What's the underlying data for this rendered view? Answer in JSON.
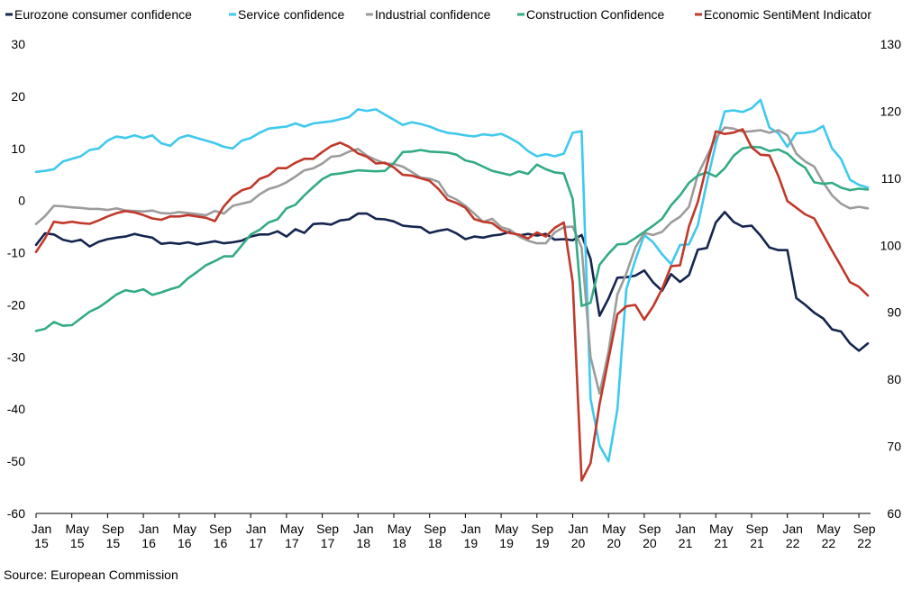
{
  "chart_data": {
    "type": "line",
    "source": "Source: European Commission",
    "x_tick_labels": [
      [
        "Jan",
        "15"
      ],
      [
        "May",
        "15"
      ],
      [
        "Sep",
        "15"
      ],
      [
        "Jan",
        "16"
      ],
      [
        "May",
        "16"
      ],
      [
        "Sep",
        "16"
      ],
      [
        "Jan",
        "17"
      ],
      [
        "May",
        "17"
      ],
      [
        "Sep",
        "17"
      ],
      [
        "Jan",
        "18"
      ],
      [
        "May",
        "18"
      ],
      [
        "Sep",
        "18"
      ],
      [
        "Jan",
        "19"
      ],
      [
        "May",
        "19"
      ],
      [
        "Sep",
        "19"
      ],
      [
        "Jan",
        "20"
      ],
      [
        "May",
        "20"
      ],
      [
        "Sep",
        "20"
      ],
      [
        "Jan",
        "21"
      ],
      [
        "May",
        "21"
      ],
      [
        "Sep",
        "21"
      ],
      [
        "Jan",
        "22"
      ],
      [
        "May",
        "22"
      ],
      [
        "Sep",
        "22"
      ]
    ],
    "x_start": "Jan 15",
    "x_end": "Oct 22",
    "left_axis": {
      "min": -60,
      "max": 30,
      "ticks": [
        30,
        20,
        10,
        0,
        -10,
        -20,
        -30,
        -40,
        -50,
        -60
      ]
    },
    "right_axis": {
      "min": 60,
      "max": 130,
      "ticks": [
        130,
        120,
        110,
        100,
        90,
        80,
        70,
        60
      ]
    },
    "grid": false,
    "legend_position": "top",
    "series": [
      {
        "name": "Eurozone consumer confidence",
        "color": "#14254f",
        "axis": "left",
        "values": [
          -8.5,
          -6.3,
          -6.5,
          -7.5,
          -7.9,
          -7.5,
          -8.8,
          -7.9,
          -7.4,
          -7.1,
          -6.9,
          -6.4,
          -6.8,
          -7.1,
          -8.3,
          -8.1,
          -8.3,
          -8.0,
          -8.4,
          -8.1,
          -7.8,
          -8.2,
          -8.0,
          -7.7,
          -6.9,
          -6.5,
          -6.5,
          -5.9,
          -6.9,
          -5.5,
          -6.2,
          -4.5,
          -4.4,
          -4.6,
          -3.8,
          -3.6,
          -2.5,
          -2.5,
          -3.5,
          -3.6,
          -4.0,
          -4.8,
          -5.0,
          -5.1,
          -6.2,
          -5.8,
          -5.5,
          -6.3,
          -7.4,
          -6.9,
          -7.1,
          -6.7,
          -6.5,
          -6.0,
          -6.7,
          -6.4,
          -6.7,
          -6.4,
          -7.5,
          -7.4,
          -7.6,
          -6.6,
          -11.2,
          -22.1,
          -18.8,
          -14.8,
          -14.7,
          -14.4,
          -13.4,
          -15.7,
          -17.3,
          -14.1,
          -15.6,
          -14.3,
          -9.4,
          -9.1,
          -4.2,
          -2.2,
          -4.1,
          -5.0,
          -4.8,
          -6.7,
          -9.0,
          -9.5,
          -9.5,
          -18.7,
          -20.0,
          -21.5,
          -22.6,
          -24.7,
          -25.1,
          -27.4,
          -28.8,
          -27.4
        ]
      },
      {
        "name": "Service confidence",
        "color": "#3fc9ee",
        "axis": "left",
        "values": [
          5.5,
          5.7,
          6.0,
          7.5,
          8.0,
          8.5,
          9.7,
          10.0,
          11.5,
          12.3,
          12.0,
          12.5,
          12.0,
          12.5,
          11.0,
          10.5,
          12.0,
          12.5,
          12.0,
          11.5,
          11.0,
          10.3,
          10.0,
          11.5,
          12.0,
          13.0,
          13.8,
          14.0,
          14.2,
          14.8,
          14.2,
          14.8,
          15.0,
          15.2,
          15.6,
          16.0,
          17.5,
          17.2,
          17.5,
          16.5,
          15.5,
          14.5,
          15.0,
          14.7,
          14.2,
          13.5,
          13.0,
          12.8,
          12.5,
          12.3,
          12.7,
          12.5,
          12.8,
          12.0,
          11.0,
          9.5,
          8.5,
          8.9,
          8.5,
          9.0,
          13.0,
          13.3,
          -38.0,
          -47.0,
          -50.0,
          -40.0,
          -17.0,
          -11.4,
          -6.6,
          -8.0,
          -10.3,
          -12.2,
          -8.5,
          -8.4,
          -4.7,
          3.5,
          10.9,
          17.1,
          17.3,
          17.0,
          17.7,
          19.3,
          14.0,
          12.9,
          10.3,
          12.9,
          13.0,
          13.3,
          14.3,
          10.0,
          8.0,
          4.0,
          3.0,
          2.5
        ]
      },
      {
        "name": "Industrial confidence",
        "color": "#9c9c9c",
        "axis": "left",
        "values": [
          -4.5,
          -3.0,
          -1.0,
          -1.1,
          -1.3,
          -1.4,
          -1.6,
          -1.6,
          -1.8,
          -1.5,
          -1.9,
          -2.0,
          -2.1,
          -1.9,
          -2.4,
          -2.5,
          -2.2,
          -2.4,
          -2.6,
          -2.8,
          -2.0,
          -2.5,
          -1.0,
          -0.6,
          -0.2,
          1.2,
          2.2,
          2.7,
          3.5,
          4.6,
          5.8,
          6.2,
          7.1,
          8.4,
          8.6,
          9.4,
          9.9,
          8.6,
          7.8,
          7.1,
          7.0,
          6.5,
          5.5,
          4.4,
          4.2,
          3.6,
          1.0,
          0.2,
          -1.0,
          -2.5,
          -4.1,
          -3.5,
          -5.1,
          -5.6,
          -6.9,
          -7.7,
          -8.2,
          -8.2,
          -6.1,
          -5.1,
          -5.0,
          -9.0,
          -30.0,
          -37.0,
          -29.0,
          -18.0,
          -14.0,
          -9.0,
          -6.2,
          -6.6,
          -6.0,
          -4.2,
          -3.1,
          -1.2,
          5.0,
          8.5,
          12.0,
          14.0,
          13.8,
          13.2,
          13.3,
          13.5,
          13.0,
          13.5,
          12.5,
          9.0,
          7.5,
          6.5,
          3.5,
          1.0,
          -0.6,
          -1.5,
          -1.2,
          -1.5
        ]
      },
      {
        "name": "Construction Confidence",
        "color": "#33ab85",
        "axis": "left",
        "values": [
          -25.0,
          -24.6,
          -23.3,
          -24.0,
          -23.9,
          -22.6,
          -21.3,
          -20.5,
          -19.3,
          -18.0,
          -17.2,
          -17.5,
          -17.0,
          -18.1,
          -17.6,
          -17.0,
          -16.5,
          -14.9,
          -13.7,
          -12.4,
          -11.6,
          -10.7,
          -10.7,
          -8.6,
          -6.5,
          -5.6,
          -4.2,
          -3.6,
          -1.5,
          -0.8,
          1.0,
          2.6,
          4.1,
          5.0,
          5.2,
          5.5,
          5.8,
          5.7,
          5.6,
          5.7,
          7.2,
          9.3,
          9.4,
          9.7,
          9.4,
          9.3,
          9.2,
          8.8,
          7.7,
          7.3,
          6.5,
          5.7,
          5.3,
          4.9,
          5.6,
          5.1,
          6.9,
          6.0,
          5.4,
          5.2,
          0.3,
          -20.2,
          -19.6,
          -12.3,
          -10.2,
          -8.4,
          -8.3,
          -7.2,
          -6.0,
          -4.8,
          -3.5,
          -0.9,
          1.0,
          3.4,
          4.8,
          5.4,
          4.6,
          6.2,
          8.6,
          10.0,
          10.3,
          10.2,
          9.5,
          9.8,
          9.0,
          7.4,
          6.3,
          3.5,
          3.2,
          3.4,
          2.5,
          2.0,
          2.3,
          2.1
        ]
      },
      {
        "name": "Economic SentiMent Indicator",
        "color": "#c0392b",
        "axis": "right",
        "values": [
          99.0,
          101.0,
          103.5,
          103.3,
          103.5,
          103.3,
          103.2,
          103.7,
          104.3,
          104.8,
          105.1,
          104.9,
          104.5,
          104.0,
          103.8,
          104.3,
          104.3,
          104.5,
          104.3,
          104.1,
          103.6,
          105.8,
          107.3,
          108.2,
          108.6,
          109.9,
          110.4,
          111.5,
          111.5,
          112.3,
          112.9,
          112.9,
          113.9,
          114.8,
          115.3,
          114.7,
          113.7,
          113.2,
          112.2,
          112.3,
          111.6,
          110.5,
          110.4,
          110.0,
          109.6,
          108.4,
          106.8,
          106.3,
          105.6,
          103.9,
          103.5,
          103.3,
          102.3,
          101.8,
          101.6,
          101.0,
          101.9,
          101.3,
          102.6,
          103.4,
          94.5,
          64.9,
          67.5,
          76.3,
          83.0,
          89.7,
          90.9,
          91.1,
          88.9,
          90.9,
          93.5,
          96.9,
          97.0,
          102.8,
          106.5,
          112.0,
          117.0,
          116.6,
          116.8,
          117.3,
          114.6,
          113.5,
          113.4,
          110.3,
          106.6,
          105.6,
          104.6,
          104.0,
          101.6,
          99.2,
          96.9,
          94.5,
          93.8,
          92.5
        ]
      }
    ]
  }
}
